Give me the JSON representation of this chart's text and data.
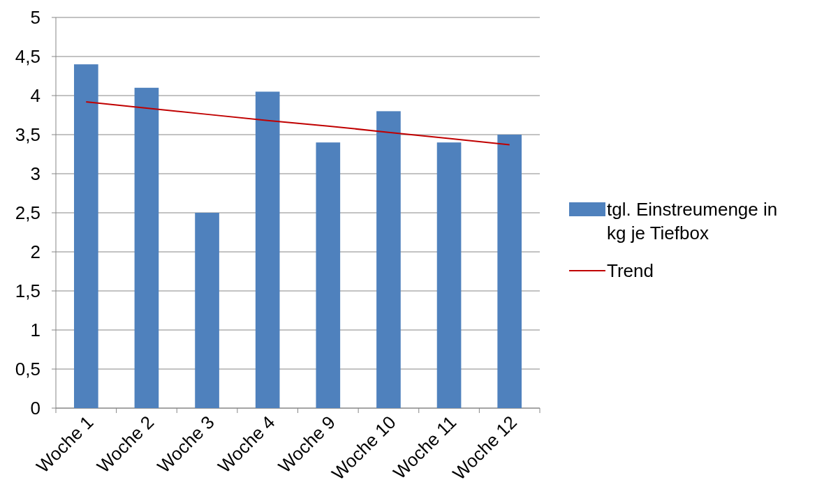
{
  "chart_data": {
    "type": "bar",
    "categories": [
      "Woche 1",
      "Woche 2",
      "Woche 3",
      "Woche 4",
      "Woche 9",
      "Woche 10",
      "Woche 11",
      "Woche 12"
    ],
    "series": [
      {
        "name": "tgl. Einstreumenge in kg je Tiefbox",
        "color": "#4f81bd",
        "values": [
          4.4,
          4.1,
          2.5,
          4.05,
          3.4,
          3.8,
          3.4,
          3.5
        ]
      },
      {
        "name": "Trend",
        "type": "line",
        "color": "#c00000",
        "values": [
          3.92,
          3.84,
          3.76,
          3.68,
          3.61,
          3.53,
          3.45,
          3.37
        ]
      }
    ],
    "ylim": [
      0,
      5
    ],
    "yticks": [
      0,
      {
        "value": 0.5,
        "label": "0,5"
      },
      1,
      {
        "value": 1.5,
        "label": "1,5"
      },
      2,
      {
        "value": 2.5,
        "label": "2,5"
      },
      3,
      {
        "value": 3.5,
        "label": "3,5"
      },
      4,
      {
        "value": 4.5,
        "label": "4,5"
      },
      5
    ],
    "grid": "y",
    "legend": "right"
  }
}
